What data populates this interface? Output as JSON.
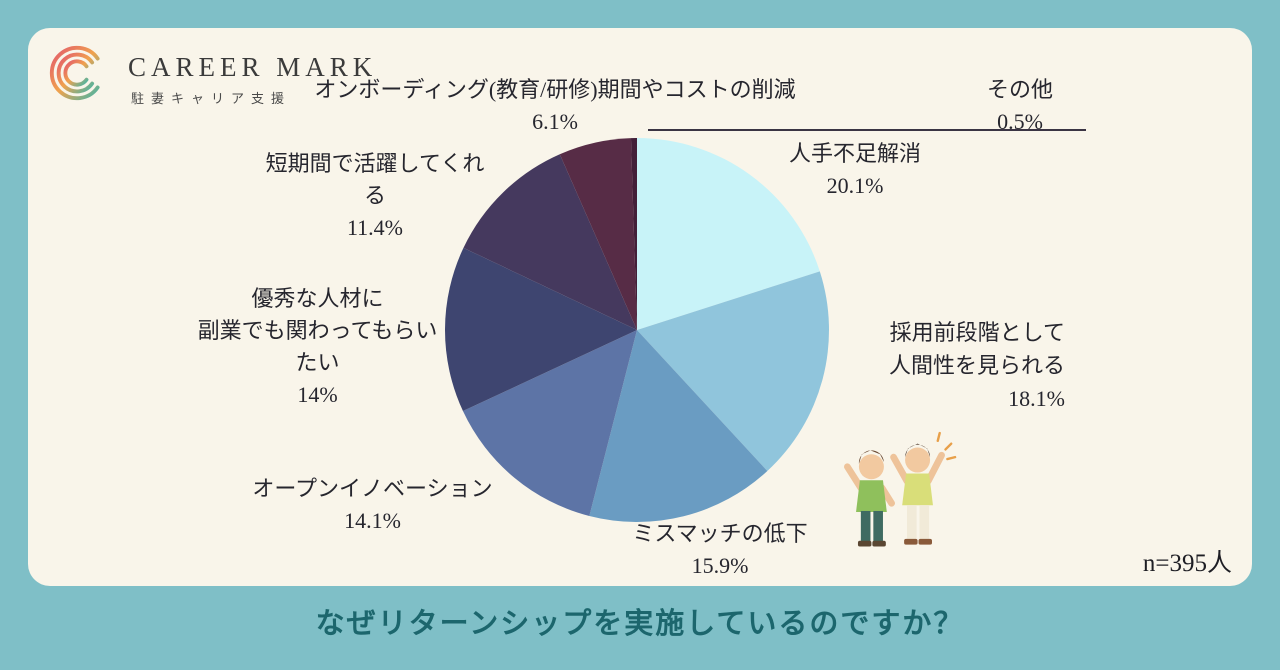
{
  "page": {
    "title": "なぜリターンシップを実施しているのですか？",
    "sample_note": "n=395人",
    "colors": {
      "background": "#7fbfc7",
      "card": "#f9f5ea",
      "title_text": "#1c666d"
    }
  },
  "logo": {
    "brand": "CAREER MARK",
    "subtitle": "駐妻キャリア支援"
  },
  "chart_data": {
    "type": "pie",
    "title": "なぜリターンシップを実施しているのですか？",
    "unit": "%",
    "sample_label": "n=395人",
    "start_angle_deg": -90,
    "direction": "clockwise",
    "legend_position": "around",
    "slices": [
      {
        "label": "人手不足解消",
        "value": 20.1,
        "color": "#c8f3f8"
      },
      {
        "label": "採用前段階として人間性を見られる",
        "value": 18.1,
        "color": "#90c5dc"
      },
      {
        "label": "ミスマッチの低下",
        "value": 15.9,
        "color": "#6a9cc2"
      },
      {
        "label": "オープンイノベーション",
        "value": 14.1,
        "color": "#5d74a6"
      },
      {
        "label": "優秀な人材に副業でも関わってもらいたい",
        "value": 14,
        "color": "#3e4570"
      },
      {
        "label": "短期間で活躍してくれる",
        "value": 11.4,
        "color": "#45395e"
      },
      {
        "label": "オンボーディング(教育/研修)期間やコストの削減",
        "value": 6.1,
        "color": "#572c46"
      },
      {
        "label": "その他",
        "value": 0.5,
        "color": "#431f39"
      }
    ]
  },
  "callouts": {
    "onboarding": {
      "line1": "オンボーディング(教育/研修)期間やコストの削減",
      "pct": "6.1%"
    },
    "other": {
      "line1": "その他",
      "pct": "0.5%"
    },
    "labor_shortage": {
      "line1": "人手不足解消",
      "pct": "20.1%"
    },
    "pre_hiring": {
      "line1": "採用前段階として",
      "line2": "人間性を見られる",
      "pct": "18.1%"
    },
    "mismatch": {
      "line1": "ミスマッチの低下",
      "pct": "15.9%"
    },
    "open_innovation": {
      "line1": "オープンイノベーション",
      "pct": "14.1%"
    },
    "talent_sidejob": {
      "line1": "優秀な人材に",
      "line2": "副業でも関わってもらいたい",
      "pct": "14%"
    },
    "short_term": {
      "line1": "短期間で活躍してくれる",
      "pct": "11.4%"
    }
  }
}
